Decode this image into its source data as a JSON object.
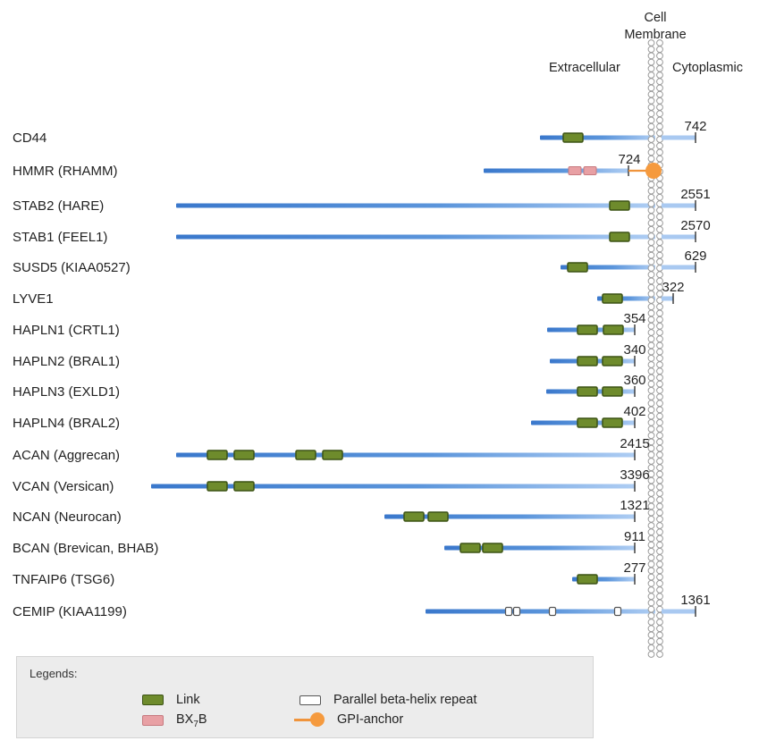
{
  "header": {
    "membrane_label_line1": "Cell",
    "membrane_label_line2": "Membrane",
    "extracellular_label": "Extracellular",
    "cytoplasmic_label": "Cytoplasmic"
  },
  "proteins": [
    {
      "name": "CD44",
      "length": "742",
      "start": 0.27,
      "end": 1.02,
      "links": [
        0.45
      ],
      "bx7b": [],
      "beta": [],
      "gpi": false,
      "tail": false
    },
    {
      "name": "HMMR (RHAMM)",
      "length": "724",
      "start": 0.0,
      "end": 0.72,
      "links": [],
      "bx7b": [
        0.44,
        0.56
      ],
      "beta": [],
      "gpi": true,
      "tail": false
    },
    {
      "name": "STAB2 (HARE)",
      "length": "2551",
      "start": 0.0,
      "end": 1.02,
      "links": [
        0.87
      ],
      "bx7b": [],
      "beta": [],
      "gpi": false,
      "tail": true
    },
    {
      "name": "STAB1 (FEEL1)",
      "length": "2570",
      "start": 0.0,
      "end": 1.02,
      "links": [
        0.87
      ],
      "bx7b": [],
      "beta": [],
      "gpi": false,
      "tail": true
    },
    {
      "name": "SUSD5 (KIAA0527)",
      "length": "629",
      "start": 0.06,
      "end": 1.02,
      "links": [
        0.13
      ],
      "bx7b": [],
      "beta": [],
      "gpi": false,
      "tail": false
    },
    {
      "name": "LYVE1",
      "length": "322",
      "start": 0.04,
      "end": 1.0,
      "links": [
        0.22
      ],
      "bx7b": [],
      "beta": [],
      "gpi": false,
      "tail": false
    },
    {
      "name": "HAPLN1 (CRTL1)",
      "length": "354",
      "start": 0.0,
      "end": 0.72,
      "links": [
        0.43,
        0.72
      ],
      "bx7b": [],
      "beta": [],
      "gpi": false,
      "tail": false
    },
    {
      "name": "HAPLN2 (BRAL1)",
      "length": "340",
      "start": 0.0,
      "end": 0.72,
      "links": [
        0.45,
        0.74
      ],
      "bx7b": [],
      "beta": [],
      "gpi": false,
      "tail": false
    },
    {
      "name": "HAPLN3 (EXLD1)",
      "length": "360",
      "start": 0.0,
      "end": 0.72,
      "links": [
        0.45,
        0.74
      ],
      "bx7b": [],
      "beta": [],
      "gpi": false,
      "tail": false
    },
    {
      "name": "HAPLN4 (BRAL2)",
      "length": "402",
      "start": 0.0,
      "end": 0.73,
      "links": [
        0.48,
        0.7
      ],
      "bx7b": [],
      "beta": [],
      "gpi": false,
      "tail": false
    },
    {
      "name": "ACAN (Aggrecan)",
      "length": "2415",
      "start": 0.0,
      "end": 1.0,
      "links": [
        0.09,
        0.15,
        0.29,
        0.34
      ],
      "bx7b": [],
      "beta": [],
      "gpi": false,
      "tail": false
    },
    {
      "name": "VCAN (Versican)",
      "length": "3396",
      "start": 0.0,
      "end": 1.0,
      "links": [
        0.14,
        0.19
      ],
      "bx7b": [],
      "beta": [],
      "gpi": false,
      "tail": false
    },
    {
      "name": "NCAN (Neurocan)",
      "length": "1321",
      "start": 0.0,
      "end": 1.0,
      "links": [
        0.12,
        0.21
      ],
      "bx7b": [],
      "beta": [],
      "gpi": false,
      "tail": false
    },
    {
      "name": "BCAN (Brevican, BHAB)",
      "length": "911",
      "start": 0.0,
      "end": 1.0,
      "links": [
        0.13,
        0.25
      ],
      "bx7b": [],
      "beta": [],
      "gpi": false,
      "tail": false
    },
    {
      "name": "TNFAIP6 (TSG6)",
      "length": "277",
      "start": 0.0,
      "end": 1.0,
      "links": [
        0.2
      ],
      "bx7b": [],
      "beta": [],
      "gpi": false,
      "tail": false
    },
    {
      "name": "CEMIP (KIAA1199)",
      "length": "1361",
      "start": 0.0,
      "end": 1.0,
      "links": [],
      "bx7b": [],
      "beta": [
        0.31,
        0.34,
        0.47,
        0.71
      ],
      "gpi": false,
      "tail": false
    }
  ],
  "legend": {
    "title": "Legends:",
    "link": "Link",
    "bx7b_prefix": "BX",
    "bx7b_sub": "7",
    "bx7b_suffix": "B",
    "beta_helix": "Parallel beta-helix repeat",
    "gpi_anchor": "GPI-anchor"
  },
  "colors": {
    "bar_dark": "#3f7fd0",
    "bar_light": "#a9c9f1",
    "link_fill": "#6e8b2c",
    "link_stroke": "#3c5315",
    "bx7b_fill": "#e8a0a4",
    "gpi": "#f59a3e",
    "membrane": "#9a9a9a"
  }
}
